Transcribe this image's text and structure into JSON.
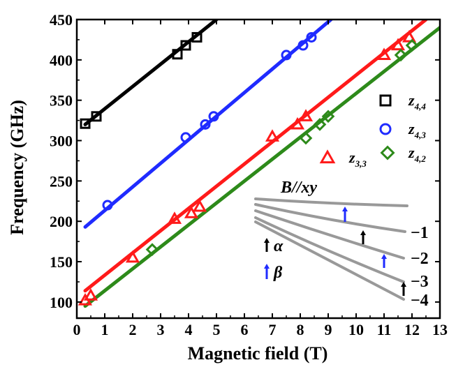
{
  "chart_data": {
    "type": "scatter",
    "xlabel": "Magnetic field (T)",
    "ylabel": "Frequency (GHz)",
    "xlim": [
      0,
      13
    ],
    "ylim": [
      80,
      450
    ],
    "xticks": [
      0,
      1,
      2,
      3,
      4,
      5,
      6,
      7,
      8,
      9,
      10,
      11,
      12,
      13
    ],
    "yticks": [
      100,
      150,
      200,
      250,
      300,
      350,
      400,
      450
    ],
    "grid": false,
    "legend_position": "right",
    "series": [
      {
        "name": "z4,4",
        "label_main": "z",
        "label_sub": "4,4",
        "color": "#000000",
        "marker": "square",
        "points": [
          [
            0.3,
            321
          ],
          [
            0.7,
            330
          ],
          [
            3.6,
            407
          ],
          [
            3.9,
            418
          ],
          [
            4.3,
            428
          ]
        ],
        "fit": [
          [
            0.3,
            320
          ],
          [
            5.0,
            450
          ]
        ]
      },
      {
        "name": "z4,3",
        "label_main": "z",
        "label_sub": "4,3",
        "color": "#1f2bff",
        "marker": "circle",
        "points": [
          [
            1.1,
            220
          ],
          [
            3.9,
            304
          ],
          [
            4.6,
            320
          ],
          [
            4.9,
            330
          ],
          [
            7.5,
            406
          ],
          [
            8.1,
            418
          ],
          [
            8.4,
            428
          ]
        ],
        "fit": [
          [
            0.3,
            193
          ],
          [
            9.1,
            450
          ]
        ]
      },
      {
        "name": "z3,3",
        "label_main": "z",
        "label_sub": "3,3",
        "color": "#ff1a1a",
        "marker": "triangle",
        "points": [
          [
            0.3,
            102
          ],
          [
            0.5,
            108
          ],
          [
            2.0,
            155
          ],
          [
            3.5,
            203
          ],
          [
            4.1,
            210
          ],
          [
            4.4,
            218
          ],
          [
            7.0,
            305
          ],
          [
            7.9,
            320
          ],
          [
            8.2,
            330
          ],
          [
            11.0,
            406
          ],
          [
            11.5,
            418
          ],
          [
            11.9,
            428
          ]
        ],
        "fit": [
          [
            0.3,
            114
          ],
          [
            12.5,
            450
          ]
        ]
      },
      {
        "name": "z4,2",
        "label_main": "z",
        "label_sub": "4,2",
        "color": "#2d8a1a",
        "marker": "diamond",
        "points": [
          [
            2.7,
            165
          ],
          [
            8.2,
            303
          ],
          [
            8.7,
            320
          ],
          [
            9.0,
            330
          ],
          [
            11.6,
            406
          ],
          [
            12.0,
            418
          ]
        ],
        "fit": [
          [
            0.3,
            95
          ],
          [
            13.0,
            440
          ]
        ]
      }
    ],
    "inset": {
      "title": "B//xy",
      "line_labels": [
        "−1",
        "−2",
        "−3",
        "−4"
      ],
      "arrow_labels": [
        "α",
        "β"
      ],
      "colors": {
        "alpha": "#000000",
        "beta": "#1f2bff",
        "lines": "#999999"
      }
    }
  }
}
